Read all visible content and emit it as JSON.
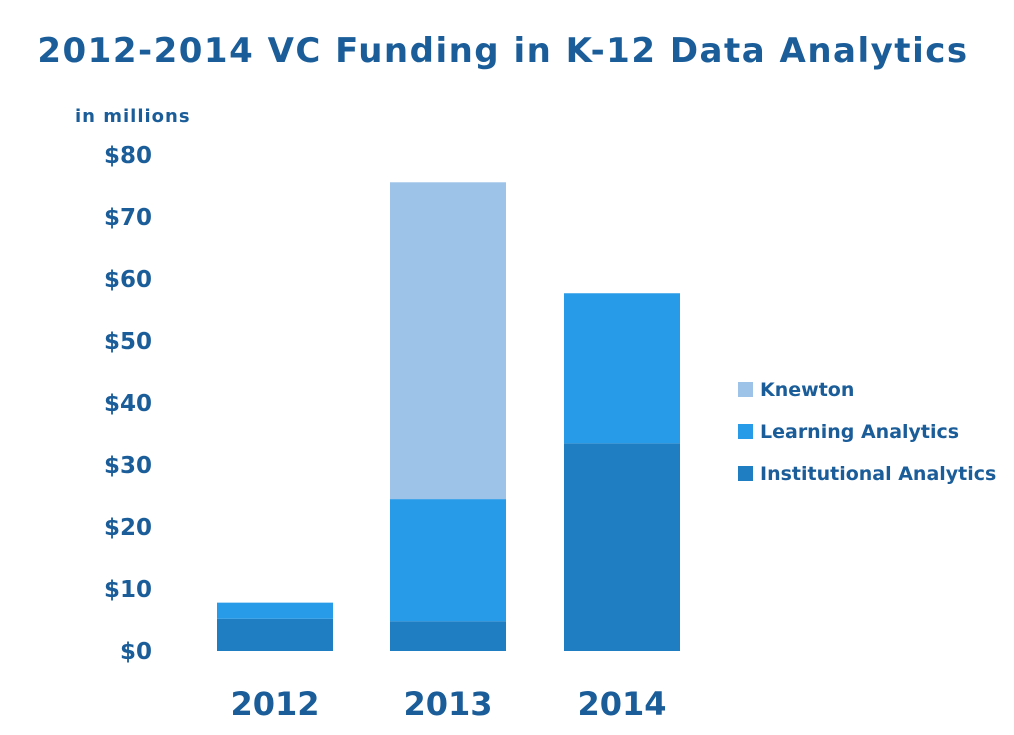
{
  "chart_data": {
    "type": "bar",
    "stacked": true,
    "title": "2012-2014 VC Funding in K-12 Data Analytics",
    "units_label": "in millions",
    "categories": [
      "2012",
      "2013",
      "2014"
    ],
    "series": [
      {
        "name": "Institutional Analytics",
        "values": [
          5.2,
          4.8,
          33.5
        ],
        "color": "#1f7dc1"
      },
      {
        "name": "Learning Analytics",
        "values": [
          2.6,
          19.7,
          24.2
        ],
        "color": "#279be8"
      },
      {
        "name": "Knewton",
        "values": [
          0,
          51.1,
          0
        ],
        "color": "#9dc3e9"
      }
    ],
    "legend_order": [
      "Knewton",
      "Learning Analytics",
      "Institutional Analytics"
    ],
    "ylim": [
      0,
      80
    ],
    "yticks": [
      0,
      10,
      20,
      30,
      40,
      50,
      60,
      70,
      80
    ],
    "ytick_labels": [
      "$0",
      "$10",
      "$20",
      "$30",
      "$40",
      "$50",
      "$60",
      "$70",
      "$80"
    ],
    "grid": false,
    "legend_position": "right",
    "text_color": "#1a5d99"
  }
}
